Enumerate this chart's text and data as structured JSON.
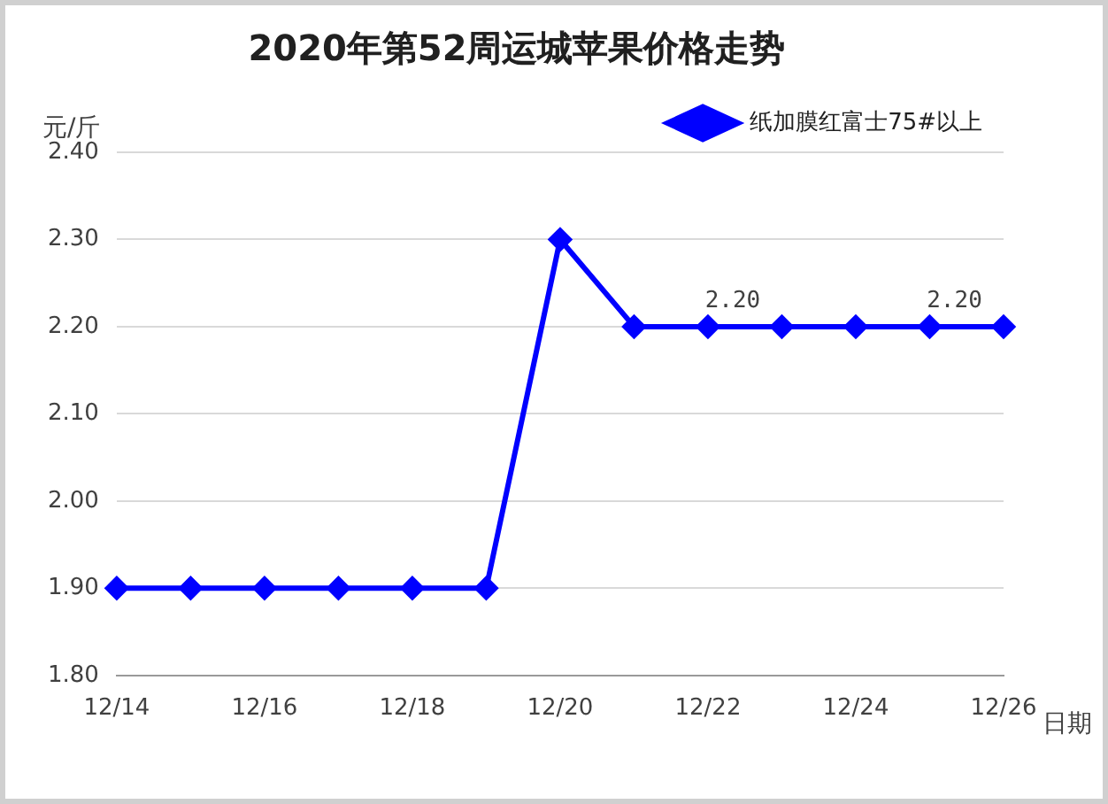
{
  "chart_data": {
    "type": "line",
    "title": "2020年第52周运城苹果价格走势",
    "xlabel": "日期",
    "ylabel": "元/斤",
    "categories": [
      "12/14",
      null,
      "12/16",
      null,
      "12/18",
      null,
      "12/20",
      null,
      "12/22",
      null,
      "12/24",
      null,
      "12/26"
    ],
    "series": [
      {
        "name": "纸加膜红富士75#以上",
        "color": "#0000ff",
        "values": [
          1.9,
          1.9,
          1.9,
          1.9,
          1.9,
          1.9,
          2.3,
          2.2,
          2.2,
          2.2,
          2.2,
          2.2,
          2.2
        ],
        "value_labels": [
          null,
          null,
          null,
          null,
          null,
          null,
          null,
          null,
          "2.20",
          null,
          null,
          "2.20",
          null
        ]
      }
    ],
    "ylim": [
      1.8,
      2.4
    ],
    "yticks": [
      {
        "value": 1.8,
        "label": "1.80"
      },
      {
        "value": 1.9,
        "label": "1.90"
      },
      {
        "value": 2.0,
        "label": "2.00"
      },
      {
        "value": 2.1,
        "label": "2.10"
      },
      {
        "value": 2.2,
        "label": "2.20"
      },
      {
        "value": 2.3,
        "label": "2.30"
      },
      {
        "value": 2.4,
        "label": "2.40"
      }
    ],
    "grid": "y",
    "legend": "top right",
    "marker": "diamond",
    "line_style": "solid"
  }
}
